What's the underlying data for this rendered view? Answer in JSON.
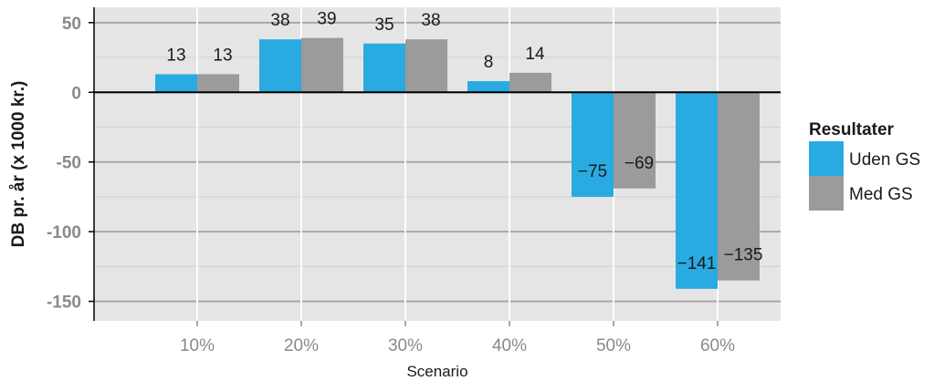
{
  "chart_data": {
    "type": "bar",
    "xlabel": "Scenario",
    "ylabel": "DB pr. år (x 1000 kr.)",
    "categories": [
      "10%",
      "20%",
      "30%",
      "40%",
      "50%",
      "60%"
    ],
    "series": [
      {
        "name": "Uden GS",
        "values": [
          13,
          38,
          35,
          8,
          -75,
          -141
        ],
        "labels": [
          "13",
          "38",
          "35",
          "8",
          "−75",
          "−141"
        ],
        "color": "#29abe2"
      },
      {
        "name": "Med GS",
        "values": [
          13,
          39,
          38,
          14,
          -69,
          -135
        ],
        "labels": [
          "13",
          "39",
          "38",
          "14",
          "−69",
          "−135"
        ],
        "color": "#9b9b9b"
      }
    ],
    "ylim": [
      -164,
      61
    ],
    "yticks": [
      50,
      0,
      -50,
      -100,
      -150
    ],
    "ytick_labels": [
      "50",
      "0",
      "-50",
      "-100",
      "-150"
    ],
    "grid": true,
    "legend": {
      "title": "Resultater",
      "position": "right"
    },
    "colors": {
      "panel": "#e5e5e5",
      "grid_major": "#a9a9a0",
      "grid_minor": "#d2d2d2",
      "zero_line": "#000000"
    }
  }
}
